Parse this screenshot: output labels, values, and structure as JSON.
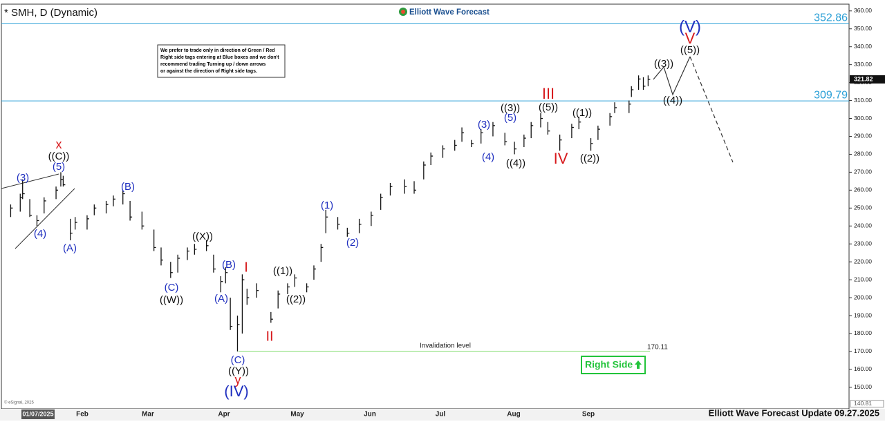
{
  "header": {
    "symbol": "* SMH, D (Dynamic)",
    "logo": "Elliott Wave Forecast",
    "note": [
      "We prefer to trade only in direction of Green / Red",
      "Right side tags entering at Blue boxes and we don't",
      "recommend trading Turning up / down arrows",
      "or against the direction of Right side tags."
    ],
    "copyright": "© eSignal, 2025",
    "footer": "Elliott Wave Forecast Update 09.27.2025",
    "right_side": "Right Side"
  },
  "chart_data": {
    "type": "ohlc",
    "x": [
      "2025-01-02",
      "2025-01-06",
      "2025-01-07",
      "2025-01-10",
      "2025-01-13",
      "2025-01-16",
      "2025-01-21",
      "2025-01-23",
      "2025-01-24",
      "2025-01-27",
      "2025-01-29",
      "2025-02-03",
      "2025-02-06",
      "2025-02-11",
      "2025-02-14",
      "2025-02-18",
      "2025-02-21",
      "2025-02-26",
      "2025-03-03",
      "2025-03-06",
      "2025-03-10",
      "2025-03-13",
      "2025-03-17",
      "2025-03-20",
      "2025-03-25",
      "2025-03-28",
      "2025-03-31",
      "2025-04-02",
      "2025-04-04",
      "2025-04-07",
      "2025-04-09",
      "2025-04-11",
      "2025-04-15",
      "2025-04-21",
      "2025-04-24",
      "2025-04-28",
      "2025-05-01",
      "2025-05-06",
      "2025-05-09",
      "2025-05-12",
      "2025-05-14",
      "2025-05-19",
      "2025-05-23",
      "2025-05-28",
      "2025-06-02",
      "2025-06-06",
      "2025-06-10",
      "2025-06-16",
      "2025-06-20",
      "2025-06-24",
      "2025-06-27",
      "2025-07-02",
      "2025-07-07",
      "2025-07-10",
      "2025-07-14",
      "2025-07-18",
      "2025-07-23",
      "2025-07-28",
      "2025-08-01",
      "2025-08-05",
      "2025-08-08",
      "2025-08-12",
      "2025-08-15",
      "2025-08-20",
      "2025-08-25",
      "2025-08-28",
      "2025-09-02",
      "2025-09-05",
      "2025-09-10",
      "2025-09-12",
      "2025-09-18",
      "2025-09-19",
      "2025-09-22",
      "2025-09-24",
      "2025-09-26"
    ],
    "high": [
      252,
      258,
      266,
      255,
      246,
      256,
      262,
      270,
      268,
      244,
      245,
      246,
      252,
      254,
      257,
      260,
      254,
      248,
      238,
      228,
      220,
      224,
      228,
      230,
      232,
      224,
      212,
      217,
      200,
      190,
      213,
      205,
      208,
      192,
      204,
      208,
      213,
      208,
      218,
      230,
      249,
      245,
      239,
      244,
      248,
      258,
      264,
      266,
      265,
      276,
      281,
      285,
      288,
      295,
      288,
      294,
      298,
      292,
      287,
      291,
      298,
      303,
      298,
      291,
      297,
      301,
      289,
      296,
      303,
      309,
      310,
      318,
      324,
      323,
      324
    ],
    "low": [
      245,
      248,
      255,
      245,
      240,
      247,
      255,
      262,
      262,
      232,
      238,
      238,
      246,
      247,
      251,
      252,
      243,
      238,
      226,
      218,
      211,
      214,
      221,
      224,
      226,
      214,
      203,
      208,
      182,
      170,
      180,
      196,
      200,
      186,
      194,
      202,
      206,
      203,
      210,
      220,
      236,
      238,
      234,
      236,
      240,
      249,
      257,
      258,
      258,
      266,
      274,
      278,
      282,
      287,
      284,
      286,
      290,
      285,
      280,
      284,
      289,
      295,
      291,
      282,
      289,
      294,
      282,
      288,
      296,
      303,
      303,
      312,
      316,
      316,
      318
    ],
    "close": [
      250,
      256,
      258,
      246,
      243,
      254,
      260,
      266,
      263,
      236,
      242,
      244,
      250,
      252,
      255,
      258,
      245,
      240,
      228,
      221,
      214,
      222,
      226,
      227,
      229,
      216,
      209,
      214,
      184,
      185,
      210,
      200,
      204,
      188,
      202,
      206,
      211,
      206,
      216,
      228,
      245,
      241,
      236,
      241,
      246,
      256,
      262,
      262,
      260,
      274,
      279,
      283,
      285,
      292,
      286,
      292,
      296,
      287,
      283,
      289,
      296,
      300,
      293,
      288,
      295,
      298,
      286,
      294,
      301,
      306,
      308,
      316,
      322,
      318,
      321.82
    ],
    "color": "#111111",
    "ylim": [
      138,
      363
    ],
    "yticks": [
      {
        "value": 150,
        "label": "150.00"
      },
      {
        "value": 160,
        "label": "160.00"
      },
      {
        "value": 170,
        "label": "170.00"
      },
      {
        "value": 180,
        "label": "180.00"
      },
      {
        "value": 190,
        "label": "190.00"
      },
      {
        "value": 200,
        "label": "200.00"
      },
      {
        "value": 210,
        "label": "210.00"
      },
      {
        "value": 220,
        "label": "220.00"
      },
      {
        "value": 230,
        "label": "230.00"
      },
      {
        "value": 240,
        "label": "240.00"
      },
      {
        "value": 250,
        "label": "250.00"
      },
      {
        "value": 260,
        "label": "260.00"
      },
      {
        "value": 270,
        "label": "270.00"
      },
      {
        "value": 280,
        "label": "280.00"
      },
      {
        "value": 290,
        "label": "290.00"
      },
      {
        "value": 300,
        "label": "300.00"
      },
      {
        "value": 310,
        "label": "310.00"
      },
      {
        "value": 320,
        "label": "320.00"
      },
      {
        "value": 330,
        "label": "330.00"
      },
      {
        "value": 340,
        "label": "340.00"
      },
      {
        "value": 350,
        "label": "350.00"
      },
      {
        "value": 360,
        "label": "360.00"
      }
    ],
    "last_price": 321.82,
    "axis_min_label": 140.81,
    "x_axis_labels": [
      "01/07/2025",
      "Feb",
      "Mar",
      "Apr",
      "May",
      "Jun",
      "Jul",
      "Aug",
      "Sep"
    ],
    "levels": [
      {
        "value": 352.86,
        "color": "#2a9fd6"
      },
      {
        "value": 309.79,
        "color": "#2a9fd6"
      }
    ],
    "invalidation": {
      "label": "Invalidation level",
      "value": 170.11,
      "color": "#7ddc6a"
    },
    "annotations": [
      {
        "text": "x",
        "color": "#d7191c"
      },
      {
        "text": "((C))",
        "color": "#111111"
      },
      {
        "text": "(5)",
        "color": "#1f2fbf"
      },
      {
        "text": "(3)",
        "color": "#1f2fbf"
      },
      {
        "text": "(4)",
        "color": "#1f2fbf"
      },
      {
        "text": "(A)",
        "color": "#1f2fbf"
      },
      {
        "text": "(B)",
        "color": "#1f2fbf"
      },
      {
        "text": "(C)",
        "color": "#1f2fbf"
      },
      {
        "text": "((W))",
        "color": "#111111"
      },
      {
        "text": "((X))",
        "color": "#111111"
      },
      {
        "text": "(B)",
        "color": "#1f2fbf"
      },
      {
        "text": "(A)",
        "color": "#1f2fbf"
      },
      {
        "text": "I",
        "color": "#d7191c"
      },
      {
        "text": "II",
        "color": "#d7191c"
      },
      {
        "text": "(C)",
        "color": "#1f2fbf"
      },
      {
        "text": "((Y))",
        "color": "#111111"
      },
      {
        "text": "y",
        "color": "#d7191c"
      },
      {
        "text": "(IV)",
        "color": "#1f2fbf"
      },
      {
        "text": "((1))",
        "color": "#111111"
      },
      {
        "text": "((2))",
        "color": "#111111"
      },
      {
        "text": "(1)",
        "color": "#1f2fbf"
      },
      {
        "text": "(2)",
        "color": "#1f2fbf"
      },
      {
        "text": "(3)",
        "color": "#1f2fbf"
      },
      {
        "text": "(4)",
        "color": "#1f2fbf"
      },
      {
        "text": "(5)",
        "color": "#1f2fbf"
      },
      {
        "text": "((3))",
        "color": "#111111"
      },
      {
        "text": "((4))",
        "color": "#111111"
      },
      {
        "text": "III",
        "color": "#d7191c"
      },
      {
        "text": "((5))",
        "color": "#111111"
      },
      {
        "text": "IV",
        "color": "#d7191c"
      },
      {
        "text": "((1))",
        "color": "#111111"
      },
      {
        "text": "((2))",
        "color": "#111111"
      },
      {
        "text": "((3))",
        "color": "#111111"
      },
      {
        "text": "((4))",
        "color": "#111111"
      },
      {
        "text": "((5))",
        "color": "#111111"
      },
      {
        "text": "V",
        "color": "#d7191c"
      },
      {
        "text": "(V)",
        "color": "#1f2fbf"
      }
    ]
  }
}
